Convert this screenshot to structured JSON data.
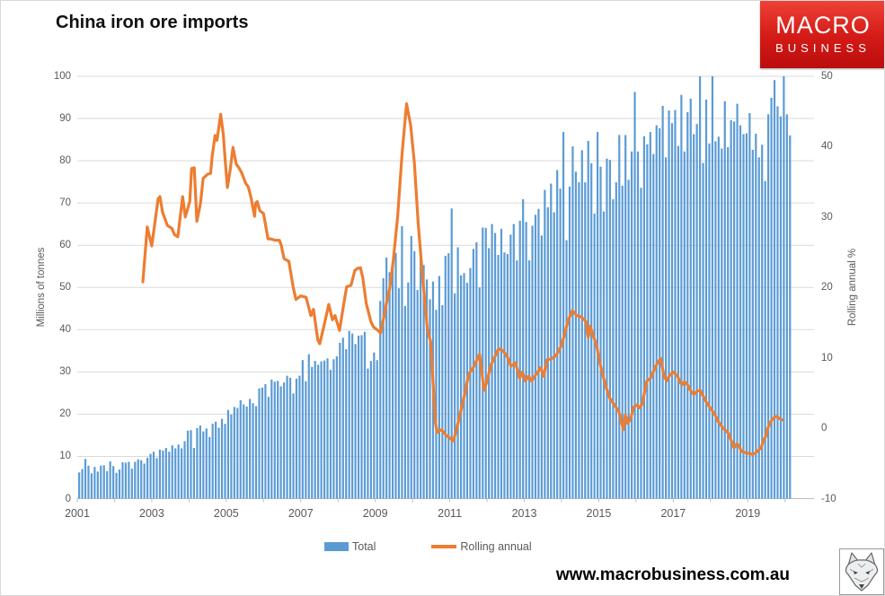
{
  "title": "China iron ore imports",
  "logo": {
    "line1": "MACRO",
    "line2": "BUSINESS"
  },
  "footer": {
    "website": "www.macrobusiness.com.au",
    "icon": "fox-icon"
  },
  "legend": {
    "items": [
      {
        "label": "Total",
        "color": "#5B9BD5",
        "type": "bar"
      },
      {
        "label": "Rolling annual",
        "color": "#ED7D31",
        "type": "line"
      }
    ]
  },
  "colors": {
    "bar": "#5B9BD5",
    "line": "#ED7D31",
    "grid": "#D9D9D9",
    "axis_line": "#BFBFBF",
    "axis_text": "#595959",
    "logo_red": "#D31A16"
  },
  "chart_data": {
    "type": "combo",
    "title": "China iron ore imports",
    "grid": true,
    "legend_position": "bottom",
    "x_axis": {
      "start": "2001-01",
      "end": "2020-02",
      "tick_labels": [
        "2001",
        "2003",
        "2005",
        "2007",
        "2009",
        "2011",
        "2013",
        "2015",
        "2017",
        "2019"
      ]
    },
    "left_axis": {
      "label": "Millions of tonnes",
      "min": 0,
      "max": 100,
      "step": 10,
      "ticks": [
        "100",
        "90",
        "80",
        "70",
        "60",
        "50",
        "40",
        "30",
        "20",
        "10",
        "0"
      ]
    },
    "right_axis": {
      "label": "Rolling annual %",
      "min": -10,
      "max": 50,
      "step": 10,
      "ticks": [
        "50",
        "40",
        "30",
        "20",
        "10",
        "0",
        "-10"
      ]
    },
    "series": [
      {
        "name": "Total",
        "type": "bar",
        "axis": "left",
        "unit": "millions of tonnes, monthly from Jan 2001",
        "monthly_values": [
          6.2,
          7.0,
          9.4,
          7.8,
          6.0,
          7.5,
          6.4,
          7.8,
          7.9,
          6.5,
          8.8,
          7.7,
          6.1,
          6.9,
          8.6,
          8.5,
          8.7,
          7.1,
          8.7,
          9.3,
          9.1,
          8.3,
          9.7,
          10.6,
          11.1,
          9.6,
          11.6,
          11.4,
          12.0,
          11.1,
          12.6,
          11.9,
          12.8,
          11.9,
          13.6,
          16.1,
          16.2,
          12.0,
          16.7,
          17.3,
          15.9,
          16.6,
          14.6,
          17.7,
          18.2,
          16.8,
          18.9,
          17.7,
          21.0,
          19.9,
          21.7,
          21.5,
          23.3,
          22.3,
          21.8,
          23.6,
          22.6,
          21.9,
          26.1,
          26.3,
          27.1,
          24.1,
          28.2,
          27.7,
          27.9,
          26.6,
          27.5,
          29.1,
          28.6,
          24.9,
          28.4,
          29.1,
          32.8,
          27.8,
          34.2,
          31.2,
          32.6,
          31.7,
          32.5,
          32.7,
          33.2,
          30.5,
          33.0,
          33.7,
          36.9,
          38.1,
          35.4,
          39.7,
          39.1,
          36.6,
          38.6,
          38.7,
          39.5,
          30.8,
          32.6,
          34.6,
          32.8,
          46.8,
          52.2,
          57.1,
          53.6,
          55.4,
          58.2,
          49.8,
          64.5,
          45.6,
          51.2,
          62.2,
          58.6,
          49.4,
          59.1,
          55.3,
          51.9,
          47.2,
          51.4,
          44.7,
          52.7,
          45.8,
          57.5,
          58.1,
          68.7,
          48.6,
          59.5,
          52.9,
          53.4,
          51.1,
          54.6,
          59.1,
          60.7,
          50.0,
          64.2,
          64.1,
          59.3,
          65.0,
          62.9,
          57.7,
          63.9,
          58.3,
          57.9,
          62.5,
          65.0,
          56.4,
          65.8,
          70.9,
          65.5,
          56.4,
          64.6,
          67.2,
          68.6,
          62.3,
          73.1,
          69.0,
          74.6,
          67.8,
          77.8,
          73.4,
          86.8,
          61.2,
          73.9,
          83.4,
          77.4,
          74.9,
          82.5,
          74.9,
          84.7,
          79.4,
          67.5,
          86.8,
          78.6,
          68.0,
          80.5,
          80.2,
          70.9,
          74.9,
          86.1,
          74.1,
          86.1,
          75.5,
          82.2,
          96.3,
          82.2,
          73.6,
          85.8,
          83.9,
          86.8,
          81.6,
          88.4,
          87.7,
          93.0,
          80.8,
          91.9,
          88.9,
          92.0,
          83.5,
          95.6,
          82.2,
          91.5,
          94.7,
          86.3,
          88.7,
          102.6,
          79.5,
          94.5,
          84.1,
          100.3,
          84.6,
          85.7,
          82.9,
          94.1,
          83.2,
          89.6,
          89.3,
          93.5,
          88.4,
          86.3,
          86.5,
          91.3,
          82.6,
          86.4,
          80.8,
          83.8,
          75.2,
          91.0,
          94.9,
          99.1,
          92.9,
          90.5,
          101.3,
          91.0,
          86.0
        ]
      },
      {
        "name": "Rolling annual",
        "type": "line",
        "axis": "right",
        "unit": "percent",
        "points": [
          [
            2002.76,
            20.8
          ],
          [
            2002.88,
            28.6
          ],
          [
            2003.0,
            25.9
          ],
          [
            2003.17,
            32.6
          ],
          [
            2003.22,
            32.9
          ],
          [
            2003.29,
            30.7
          ],
          [
            2003.42,
            28.8
          ],
          [
            2003.54,
            28.4
          ],
          [
            2003.61,
            27.5
          ],
          [
            2003.7,
            27.2
          ],
          [
            2003.83,
            32.9
          ],
          [
            2003.9,
            30.0
          ],
          [
            2004.02,
            32.2
          ],
          [
            2004.07,
            36.9
          ],
          [
            2004.14,
            37.0
          ],
          [
            2004.21,
            29.4
          ],
          [
            2004.31,
            32.0
          ],
          [
            2004.38,
            35.5
          ],
          [
            2004.5,
            36.1
          ],
          [
            2004.58,
            36.2
          ],
          [
            2004.62,
            38.6
          ],
          [
            2004.7,
            41.6
          ],
          [
            2004.75,
            40.9
          ],
          [
            2004.85,
            44.6
          ],
          [
            2004.92,
            41.8
          ],
          [
            2004.97,
            38.1
          ],
          [
            2005.03,
            34.2
          ],
          [
            2005.11,
            36.9
          ],
          [
            2005.18,
            39.9
          ],
          [
            2005.27,
            37.5
          ],
          [
            2005.35,
            36.9
          ],
          [
            2005.42,
            36.2
          ],
          [
            2005.52,
            34.8
          ],
          [
            2005.59,
            34.3
          ],
          [
            2005.66,
            32.9
          ],
          [
            2005.76,
            30.1
          ],
          [
            2005.79,
            32.0
          ],
          [
            2005.83,
            32.2
          ],
          [
            2005.9,
            30.9
          ],
          [
            2006.0,
            30.5
          ],
          [
            2006.12,
            26.9
          ],
          [
            2006.19,
            26.9
          ],
          [
            2006.31,
            26.7
          ],
          [
            2006.43,
            26.7
          ],
          [
            2006.48,
            25.9
          ],
          [
            2006.55,
            24.1
          ],
          [
            2006.68,
            23.7
          ],
          [
            2006.8,
            19.9
          ],
          [
            2006.87,
            18.3
          ],
          [
            2007.0,
            18.8
          ],
          [
            2007.14,
            18.6
          ],
          [
            2007.27,
            16.0
          ],
          [
            2007.34,
            16.9
          ],
          [
            2007.46,
            12.5
          ],
          [
            2007.51,
            12.0
          ],
          [
            2007.62,
            14.5
          ],
          [
            2007.75,
            17.6
          ],
          [
            2007.85,
            15.4
          ],
          [
            2007.92,
            16.0
          ],
          [
            2008.04,
            13.9
          ],
          [
            2008.15,
            17.5
          ],
          [
            2008.23,
            20.1
          ],
          [
            2008.35,
            20.3
          ],
          [
            2008.45,
            22.4
          ],
          [
            2008.52,
            22.7
          ],
          [
            2008.6,
            22.8
          ],
          [
            2008.66,
            21.5
          ],
          [
            2008.76,
            17.7
          ],
          [
            2008.88,
            15.2
          ],
          [
            2008.95,
            14.4
          ],
          [
            2009.07,
            13.9
          ],
          [
            2009.14,
            13.5
          ],
          [
            2009.24,
            16.0
          ],
          [
            2009.31,
            18.0
          ],
          [
            2009.39,
            19.9
          ],
          [
            2009.48,
            23.7
          ],
          [
            2009.6,
            30.1
          ],
          [
            2009.72,
            39.0
          ],
          [
            2009.84,
            46.1
          ],
          [
            2009.95,
            43.0
          ],
          [
            2010.05,
            37.7
          ],
          [
            2010.15,
            29.2
          ],
          [
            2010.25,
            22.8
          ],
          [
            2010.4,
            14.0
          ],
          [
            2010.49,
            12.2
          ],
          [
            2010.61,
            1.0
          ],
          [
            2010.66,
            -0.6
          ],
          [
            2010.78,
            -0.2
          ],
          [
            2010.9,
            -1.0
          ],
          [
            2011.1,
            -1.8
          ],
          [
            2011.22,
            0.7
          ],
          [
            2011.39,
            4.6
          ],
          [
            2011.51,
            7.7
          ],
          [
            2011.63,
            8.6
          ],
          [
            2011.8,
            10.5
          ],
          [
            2011.92,
            5.4
          ],
          [
            2011.99,
            6.5
          ],
          [
            2012.11,
            9.0
          ],
          [
            2012.31,
            11.3
          ],
          [
            2012.43,
            11.0
          ],
          [
            2012.55,
            10.1
          ],
          [
            2012.64,
            8.8
          ],
          [
            2012.76,
            9.3
          ],
          [
            2012.88,
            7.1
          ],
          [
            2012.95,
            8.0
          ],
          [
            2013.03,
            6.7
          ],
          [
            2013.12,
            7.4
          ],
          [
            2013.2,
            6.7
          ],
          [
            2013.32,
            7.7
          ],
          [
            2013.44,
            8.6
          ],
          [
            2013.52,
            7.4
          ],
          [
            2013.61,
            9.7
          ],
          [
            2013.73,
            9.9
          ],
          [
            2013.85,
            10.3
          ],
          [
            2014.0,
            11.8
          ],
          [
            2014.09,
            13.5
          ],
          [
            2014.17,
            15.2
          ],
          [
            2014.29,
            16.7
          ],
          [
            2014.41,
            16.0
          ],
          [
            2014.53,
            15.8
          ],
          [
            2014.65,
            15.2
          ],
          [
            2014.72,
            12.9
          ],
          [
            2014.77,
            14.5
          ],
          [
            2014.84,
            13.3
          ],
          [
            2014.94,
            11.8
          ],
          [
            2015.01,
            9.7
          ],
          [
            2015.13,
            7.1
          ],
          [
            2015.2,
            5.8
          ],
          [
            2015.3,
            4.2
          ],
          [
            2015.42,
            3.3
          ],
          [
            2015.54,
            2.4
          ],
          [
            2015.66,
            -0.2
          ],
          [
            2015.71,
            1.9
          ],
          [
            2015.78,
            0.7
          ],
          [
            2015.86,
            1.4
          ],
          [
            2015.93,
            3.0
          ],
          [
            2016.03,
            3.3
          ],
          [
            2016.1,
            2.9
          ],
          [
            2016.17,
            3.5
          ],
          [
            2016.29,
            6.7
          ],
          [
            2016.39,
            7.1
          ],
          [
            2016.51,
            8.6
          ],
          [
            2016.58,
            9.3
          ],
          [
            2016.66,
            9.9
          ],
          [
            2016.75,
            7.5
          ],
          [
            2016.82,
            6.7
          ],
          [
            2016.9,
            7.5
          ],
          [
            2016.95,
            7.7
          ],
          [
            2017.0,
            8.0
          ],
          [
            2017.12,
            7.4
          ],
          [
            2017.18,
            6.5
          ],
          [
            2017.24,
            6.2
          ],
          [
            2017.3,
            6.6
          ],
          [
            2017.38,
            6.2
          ],
          [
            2017.48,
            5.2
          ],
          [
            2017.55,
            4.8
          ],
          [
            2017.63,
            5.2
          ],
          [
            2017.72,
            5.4
          ],
          [
            2017.81,
            4.5
          ],
          [
            2017.91,
            3.5
          ],
          [
            2018.03,
            2.6
          ],
          [
            2018.12,
            1.9
          ],
          [
            2018.2,
            1.0
          ],
          [
            2018.32,
            0.1
          ],
          [
            2018.44,
            -0.5
          ],
          [
            2018.5,
            -0.9
          ],
          [
            2018.56,
            -1.8
          ],
          [
            2018.63,
            -2.8
          ],
          [
            2018.71,
            -2.2
          ],
          [
            2018.77,
            -2.5
          ],
          [
            2018.83,
            -3.3
          ],
          [
            2018.95,
            -3.5
          ],
          [
            2019.05,
            -3.6
          ],
          [
            2019.12,
            -3.7
          ],
          [
            2019.19,
            -3.6
          ],
          [
            2019.29,
            -3.1
          ],
          [
            2019.36,
            -2.8
          ],
          [
            2019.41,
            -1.8
          ],
          [
            2019.48,
            -1.2
          ],
          [
            2019.53,
            -0.1
          ],
          [
            2019.6,
            0.8
          ],
          [
            2019.68,
            1.4
          ],
          [
            2019.77,
            1.7
          ],
          [
            2019.84,
            1.4
          ],
          [
            2019.92,
            1.2
          ]
        ]
      }
    ]
  }
}
